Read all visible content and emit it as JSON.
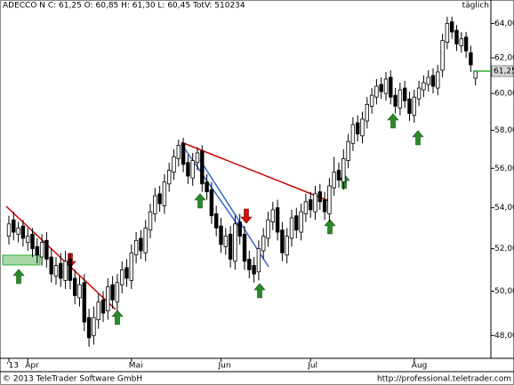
{
  "chart_data": {
    "type": "candlestick",
    "title": "ADECCO N C: 61,25 O: 60,85 H: 61,30 L: 60,45 TotV: 510234",
    "subtitle": "täglich",
    "footer_left": "© 2013 TeleTrader Software GmbH",
    "footer_right": "http://professional.teletrader.com",
    "last_price_label": "61,25",
    "last_price": 61.25,
    "log_scale": true,
    "up_color": "#ffffff",
    "down_color": "#000000",
    "ylim": [
      47,
      65.4
    ],
    "yticks": [
      {
        "value": 48,
        "label": "48,00"
      },
      {
        "value": 50,
        "label": "50,00"
      },
      {
        "value": 52,
        "label": "52,00"
      },
      {
        "value": 54,
        "label": "54,00"
      },
      {
        "value": 56,
        "label": "56,00"
      },
      {
        "value": 58,
        "label": "58,00"
      },
      {
        "value": 60,
        "label": "60,00"
      },
      {
        "value": 62,
        "label": "62,00"
      },
      {
        "value": 64,
        "label": "64,00"
      }
    ],
    "categories": [
      "'13",
      null,
      null,
      null,
      "Apr",
      null,
      null,
      null,
      null,
      null,
      null,
      null,
      null,
      null,
      null,
      null,
      null,
      null,
      null,
      null,
      null,
      null,
      null,
      null,
      null,
      null,
      "Mai",
      null,
      null,
      null,
      null,
      null,
      null,
      null,
      null,
      null,
      null,
      null,
      null,
      null,
      null,
      null,
      null,
      null,
      null,
      "Jun",
      null,
      null,
      null,
      null,
      null,
      null,
      null,
      null,
      null,
      null,
      null,
      null,
      null,
      null,
      null,
      null,
      null,
      null,
      "Jul",
      null,
      null,
      null,
      null,
      null,
      null,
      null,
      null,
      null,
      null,
      null,
      null,
      null,
      null,
      null,
      null,
      null,
      null,
      null,
      null,
      null,
      "Aug",
      null,
      null,
      null,
      null,
      null,
      null,
      null,
      null,
      null,
      null,
      null,
      null,
      null
    ],
    "open": [
      52.6,
      53.4,
      52.7,
      53.1,
      52.3,
      52.7,
      52.1,
      51.6,
      52.4,
      51.6,
      50.7,
      51.3,
      50.5,
      51.5,
      50.6,
      49.7,
      50.4,
      48.8,
      48.0,
      48.7,
      49.6,
      49.1,
      50.3,
      49.5,
      50.3,
      51.1,
      50.5,
      51.7,
      52.5,
      51.8,
      52.9,
      53.7,
      54.7,
      54.1,
      55.2,
      55.8,
      56.5,
      57.3,
      56.3,
      55.5,
      56.3,
      56.9,
      55.3,
      54.9,
      53.7,
      53.1,
      52.1,
      52.7,
      51.4,
      53.3,
      52.7,
      51.5,
      51.2,
      50.9,
      51.9,
      52.5,
      53.3,
      54.0,
      52.9,
      51.7,
      52.5,
      53.6,
      52.8,
      53.7,
      54.4,
      53.8,
      54.8,
      54.4,
      53.7,
      55.0,
      55.9,
      55.3,
      56.4,
      57.3,
      58.4,
      57.7,
      58.5,
      59.3,
      59.8,
      60.5,
      60.0,
      60.9,
      59.9,
      59.2,
      60.3,
      59.7,
      58.8,
      59.7,
      60.2,
      60.5,
      61.0,
      60.3,
      61.3,
      62.9,
      64.1,
      63.6,
      62.7,
      63.2,
      62.3,
      60.85
    ],
    "high": [
      53.6,
      53.8,
      53.3,
      53.4,
      53.0,
      53.0,
      52.5,
      52.7,
      52.8,
      52.0,
      51.6,
      51.8,
      51.9,
      51.8,
      51.0,
      50.7,
      50.8,
      49.2,
      49.3,
      49.9,
      50.0,
      50.6,
      50.7,
      50.8,
      51.4,
      51.5,
      52.2,
      52.8,
      52.9,
      53.4,
      54.2,
      55.0,
      55.1,
      55.7,
      56.3,
      57.0,
      57.5,
      57.6,
      56.7,
      56.8,
      57.1,
      57.2,
      55.7,
      55.3,
      54.1,
      53.5,
      53.0,
      53.1,
      53.6,
      53.7,
      53.1,
      51.9,
      51.6,
      52.4,
      53.0,
      53.8,
      54.3,
      54.4,
      53.3,
      53.0,
      53.9,
      54.0,
      54.2,
      54.7,
      54.8,
      55.1,
      55.2,
      54.8,
      55.5,
      56.6,
      56.3,
      57.0,
      57.8,
      58.7,
      58.8,
      59.0,
      59.8,
      60.3,
      60.8,
      60.9,
      61.2,
      61.3,
      60.3,
      60.6,
      60.7,
      60.1,
      60.2,
      60.7,
      61.0,
      61.3,
      61.4,
      61.6,
      63.4,
      64.4,
      64.4,
      63.9,
      63.5,
      63.5,
      62.7,
      61.3
    ],
    "low": [
      52.2,
      52.4,
      52.3,
      52.1,
      51.9,
      51.6,
      51.3,
      51.2,
      51.1,
      50.4,
      50.3,
      50.2,
      50.1,
      50.1,
      49.4,
      49.3,
      48.2,
      47.5,
      47.6,
      48.3,
      48.6,
      48.7,
      49.2,
      49.1,
      49.9,
      50.2,
      50.1,
      51.3,
      51.5,
      51.4,
      52.5,
      53.3,
      53.8,
      53.7,
      54.8,
      55.4,
      56.1,
      55.8,
      55.2,
      55.1,
      55.9,
      54.8,
      54.4,
      53.2,
      52.6,
      51.8,
      51.7,
      51.1,
      51.0,
      52.2,
      51.0,
      50.6,
      50.4,
      50.5,
      51.5,
      52.1,
      52.9,
      52.4,
      51.4,
      51.3,
      52.1,
      52.5,
      52.4,
      53.3,
      53.5,
      53.4,
      53.9,
      53.4,
      53.3,
      54.6,
      55.0,
      54.9,
      56.0,
      56.9,
      57.4,
      57.3,
      58.1,
      58.9,
      59.4,
      59.7,
      59.6,
      59.4,
      58.9,
      58.8,
      59.2,
      58.5,
      58.4,
      59.3,
      59.8,
      60.1,
      60.0,
      59.9,
      60.9,
      62.5,
      63.1,
      62.4,
      62.3,
      62.0,
      61.2,
      60.45
    ],
    "close": [
      53.2,
      52.8,
      53.0,
      52.5,
      52.6,
      52.0,
      51.7,
      52.3,
      51.5,
      50.8,
      51.2,
      50.6,
      51.4,
      50.5,
      49.8,
      50.3,
      48.6,
      47.9,
      48.8,
      49.5,
      49.0,
      50.2,
      49.6,
      50.4,
      51.0,
      50.6,
      51.8,
      52.4,
      51.9,
      53.0,
      53.8,
      54.6,
      54.2,
      55.3,
      55.9,
      56.6,
      57.2,
      56.2,
      55.6,
      56.4,
      56.8,
      55.2,
      54.8,
      53.6,
      53.0,
      52.2,
      52.6,
      51.5,
      53.2,
      52.6,
      51.4,
      51.0,
      50.8,
      52.0,
      52.6,
      53.4,
      53.9,
      52.8,
      51.8,
      52.6,
      53.5,
      52.9,
      53.8,
      54.3,
      53.9,
      54.7,
      54.3,
      53.8,
      55.1,
      55.8,
      55.4,
      56.5,
      57.4,
      58.3,
      57.8,
      58.6,
      59.4,
      59.9,
      60.4,
      60.1,
      60.8,
      59.8,
      59.3,
      60.2,
      59.6,
      58.9,
      59.8,
      60.3,
      60.6,
      60.9,
      60.4,
      61.2,
      63.0,
      64.0,
      63.5,
      62.8,
      63.1,
      62.4,
      61.6,
      61.25
    ]
  }
}
